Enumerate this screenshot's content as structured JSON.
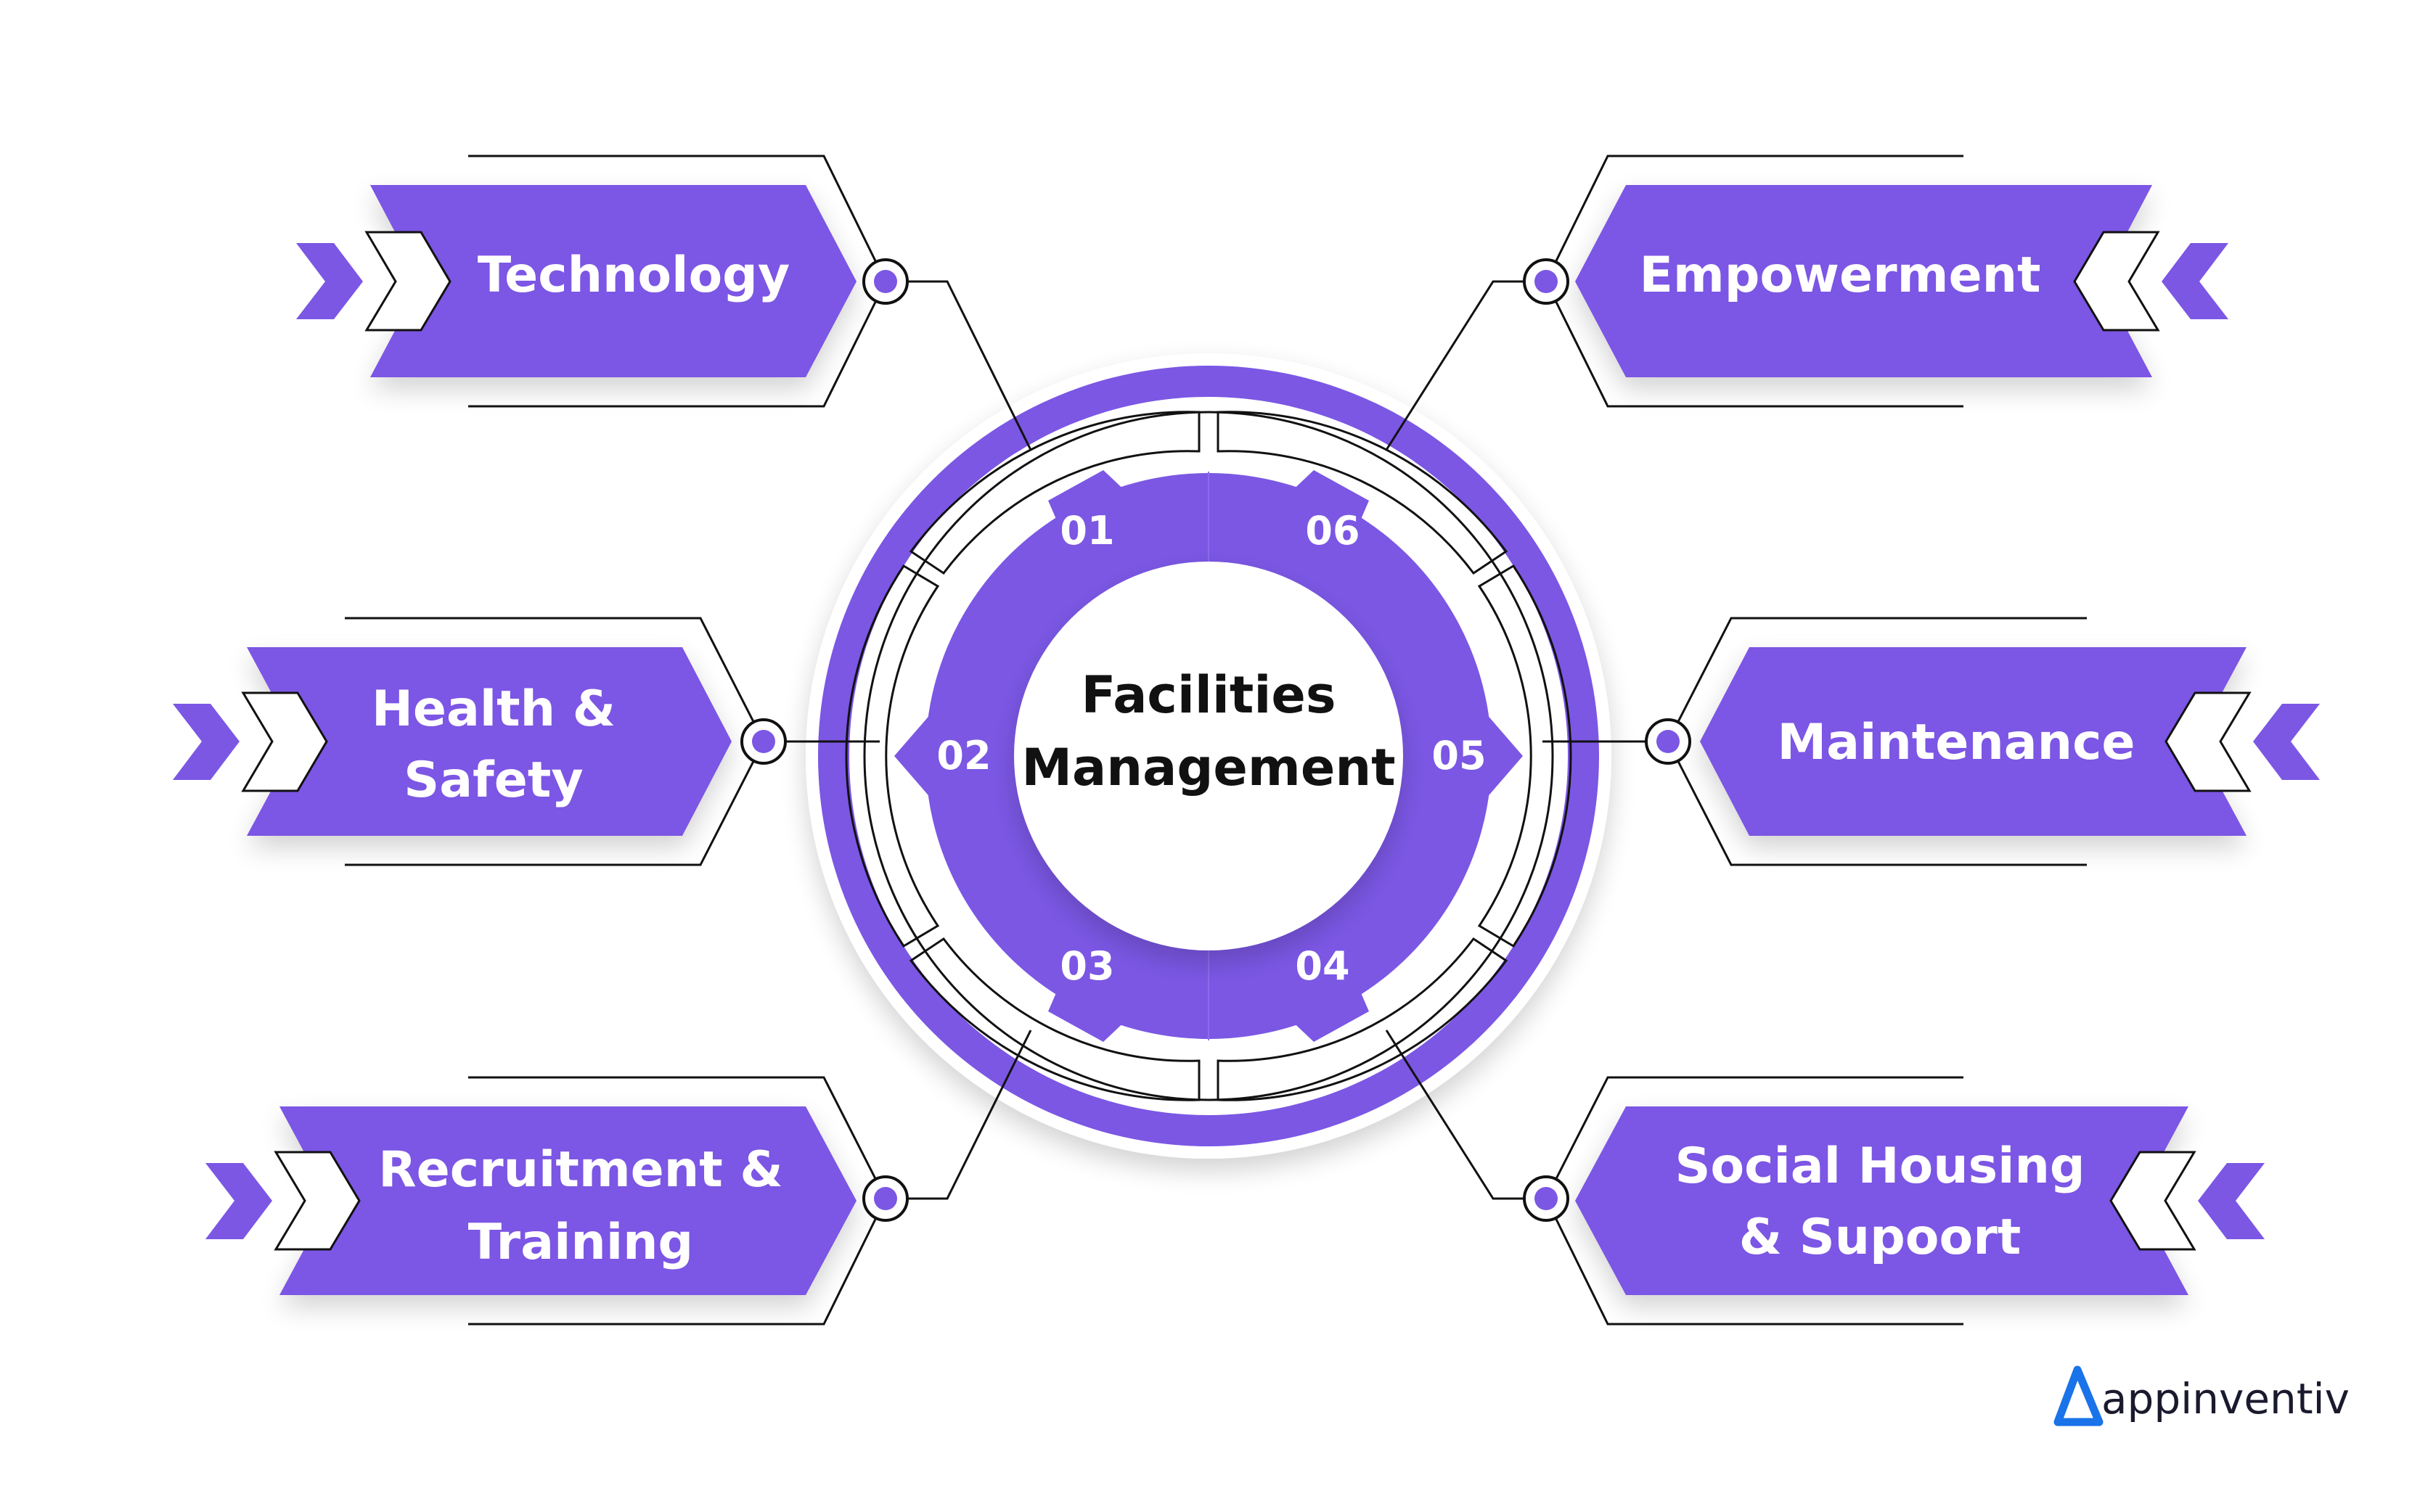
{
  "center": {
    "line1": "Facilities",
    "line2": "Management"
  },
  "segments": [
    {
      "number": "01"
    },
    {
      "number": "02"
    },
    {
      "number": "03"
    },
    {
      "number": "04"
    },
    {
      "number": "05"
    },
    {
      "number": "06"
    }
  ],
  "labels": {
    "technology": {
      "line1": "Technology"
    },
    "health": {
      "line1": "Health &",
      "line2": "Safety"
    },
    "recruitment": {
      "line1": "Recruitment &",
      "line2": "Training"
    },
    "empowerment": {
      "line1": "Empowerment"
    },
    "maintenance": {
      "line1": "Maintenance"
    },
    "social": {
      "line1": "Social Housing",
      "line2": "& Supoort"
    }
  },
  "brand": {
    "name": "appinventiv"
  },
  "colors": {
    "accent": "#7b57e4",
    "line": "#111111",
    "shadow": "#e6e6e6",
    "brand_blue": "#1a73e8"
  }
}
